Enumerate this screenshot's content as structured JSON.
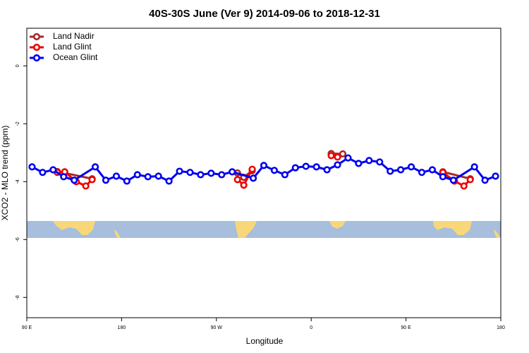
{
  "chart_data": {
    "type": "line",
    "title": "40S-30S June (Ver 9)   2014-09-06 to 2018-12-31",
    "x_label": "Longitude",
    "y_label": "XCO2 - MLO trend (ppm)",
    "xlim": [
      90,
      540
    ],
    "ylim": [
      -8.7,
      1.3
    ],
    "xticks": [
      {
        "value": 90,
        "label": "90 E"
      },
      180,
      {
        "value": 270,
        "label": "90 W"
      },
      {
        "value": 360,
        "label": "0"
      },
      {
        "value": 450,
        "label": "90 E"
      },
      {
        "value": 540,
        "label": "180"
      }
    ],
    "yticks": [
      0,
      -2,
      -4,
      -6,
      -8
    ],
    "grid": false,
    "legend": "top-left",
    "series": [
      {
        "name": "Land Nadir",
        "color": "#a52a2a",
        "x": [
          119,
          152,
          220,
          290,
          296,
          304,
          340,
          379,
          390,
          440,
          485,
          511
        ],
        "values": [
          -3.65,
          -3.9,
          null,
          -3.7,
          -3.85,
          -3.62,
          null,
          -3.03,
          -3.04,
          null,
          -3.66,
          -3.9
        ]
      },
      {
        "name": "Land Glint",
        "color": "#ee0000",
        "x": [
          119,
          126,
          137,
          146,
          152,
          220,
          290,
          296,
          304,
          340,
          379,
          385,
          440,
          485,
          496,
          505,
          511
        ],
        "values": [
          -3.68,
          -3.66,
          -4.0,
          -4.15,
          -3.93,
          null,
          -3.93,
          -4.12,
          -3.57,
          null,
          -3.1,
          -3.15,
          null,
          -3.68,
          -3.98,
          -4.15,
          -3.93
        ]
      },
      {
        "name": "Ocean Glint",
        "color": "#0000ee",
        "x": [
          95,
          105,
          115,
          125,
          135,
          155,
          165,
          175,
          185,
          195,
          205,
          215,
          225,
          235,
          245,
          255,
          265,
          275,
          285,
          305,
          315,
          325,
          335,
          345,
          355,
          365,
          375,
          385,
          395,
          405,
          415,
          425,
          435,
          445,
          455,
          465,
          475,
          485,
          495,
          515,
          525,
          535
        ],
        "values": [
          -3.49,
          -3.68,
          -3.59,
          -3.83,
          -3.95,
          -3.49,
          -3.95,
          -3.81,
          -3.98,
          -3.76,
          -3.83,
          -3.81,
          -3.98,
          -3.64,
          -3.68,
          -3.76,
          -3.71,
          -3.76,
          -3.66,
          -3.88,
          -3.44,
          -3.61,
          -3.76,
          -3.52,
          -3.47,
          -3.49,
          -3.59,
          -3.42,
          -3.18,
          -3.37,
          -3.27,
          -3.32,
          -3.64,
          -3.59,
          -3.49,
          -3.68,
          -3.59,
          -3.83,
          -3.95,
          -3.49,
          -3.95,
          -3.81
        ]
      }
    ]
  }
}
